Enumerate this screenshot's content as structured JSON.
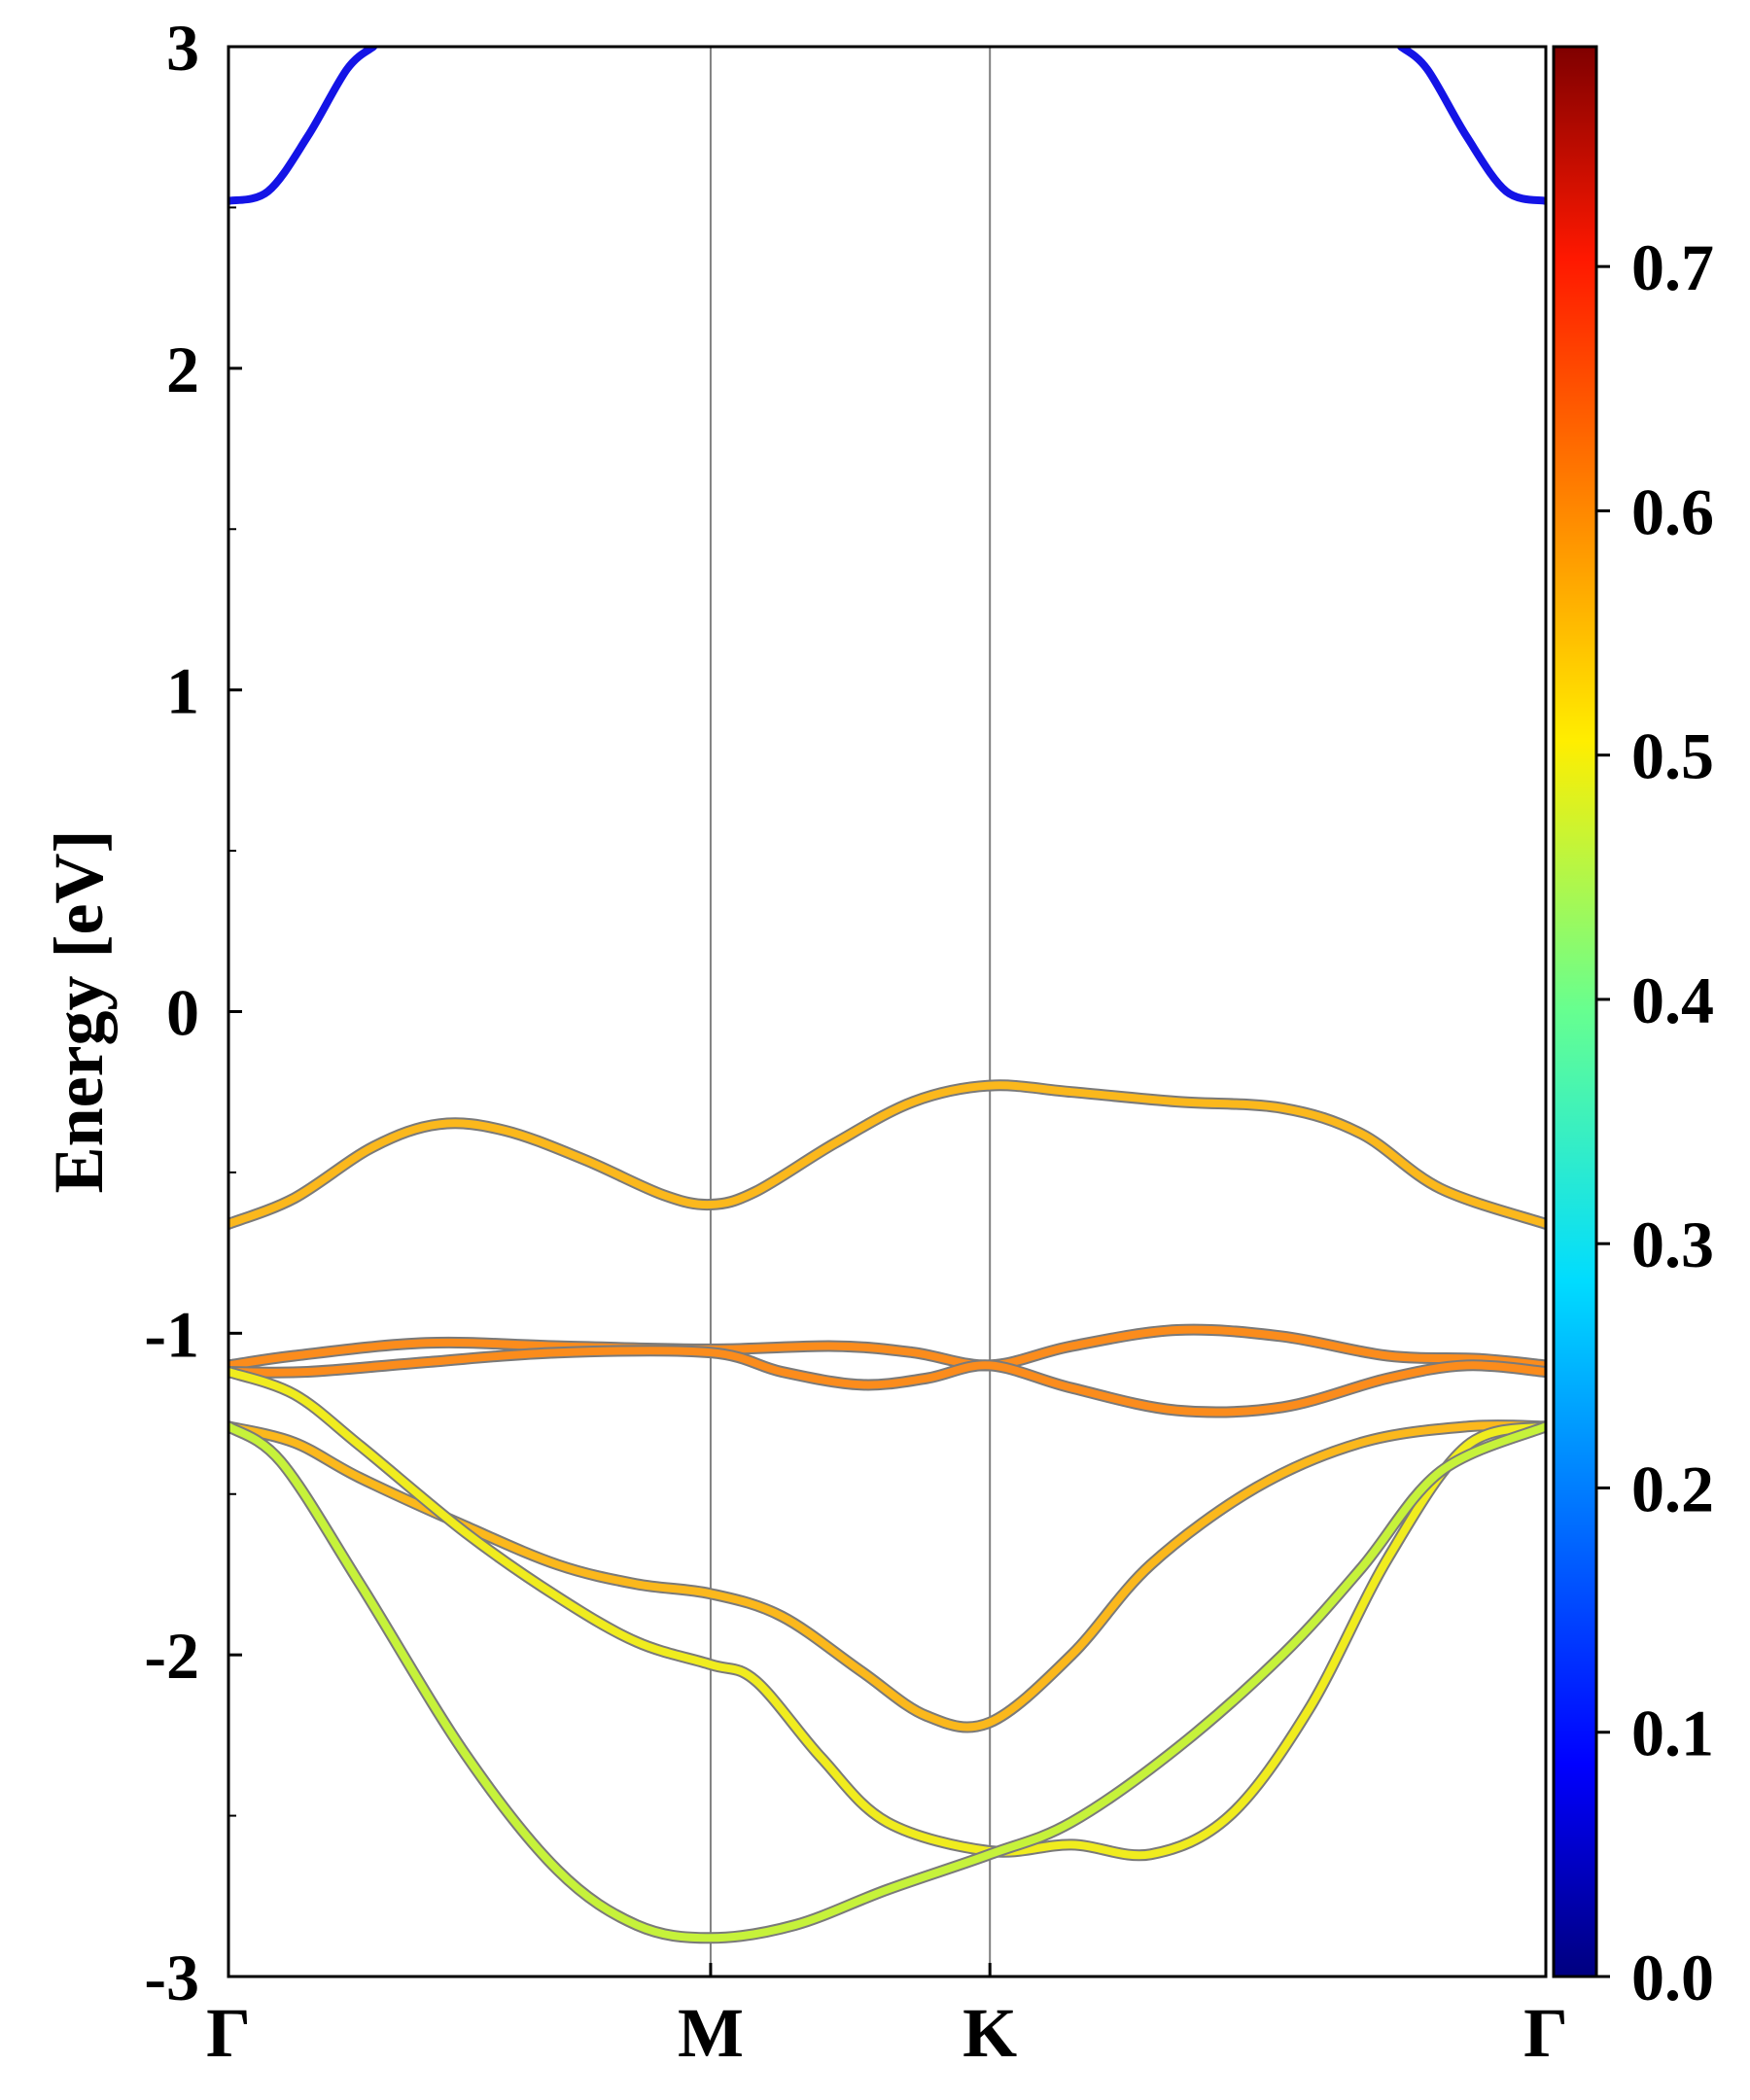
{
  "chart_data": {
    "type": "line",
    "ylabel": "Energy [eV]",
    "xlabel": "",
    "ylim": [
      -3,
      3
    ],
    "xlim": [
      0,
      1
    ],
    "yticks": [
      "-3",
      "-2",
      "-1",
      "0",
      "1",
      "2",
      "3"
    ],
    "kpath": [
      {
        "label": "Γ",
        "x": 0.0
      },
      {
        "label": "M",
        "x": 0.366
      },
      {
        "label": "K",
        "x": 0.578
      },
      {
        "label": "Γ",
        "x": 1.0
      }
    ],
    "grid": false,
    "colorbar": {
      "colormap": "jet",
      "range": [
        0.0,
        0.79
      ],
      "ticks": [
        "0.0",
        "0.1",
        "0.2",
        "0.3",
        "0.4",
        "0.5",
        "0.6",
        "0.7"
      ]
    },
    "series": [
      {
        "color": "#1414e6",
        "points": [
          [
            0.0,
            2.52
          ],
          [
            0.03,
            2.55
          ],
          [
            0.06,
            2.72
          ],
          [
            0.09,
            2.93
          ],
          [
            0.11,
            3.0
          ]
        ]
      },
      {
        "color": "#1414e6",
        "points": [
          [
            0.89,
            3.0
          ],
          [
            0.91,
            2.93
          ],
          [
            0.94,
            2.72
          ],
          [
            0.97,
            2.55
          ],
          [
            1.0,
            2.52
          ]
        ]
      },
      {
        "color": "#fbb81c",
        "points": [
          [
            0.0,
            -0.66
          ],
          [
            0.05,
            -0.58
          ],
          [
            0.11,
            -0.42
          ],
          [
            0.16,
            -0.35
          ],
          [
            0.21,
            -0.37
          ],
          [
            0.27,
            -0.46
          ],
          [
            0.33,
            -0.57
          ],
          [
            0.366,
            -0.6
          ],
          [
            0.4,
            -0.56
          ],
          [
            0.46,
            -0.41
          ],
          [
            0.52,
            -0.28
          ],
          [
            0.578,
            -0.23
          ],
          [
            0.64,
            -0.25
          ],
          [
            0.72,
            -0.28
          ],
          [
            0.8,
            -0.3
          ],
          [
            0.86,
            -0.38
          ],
          [
            0.92,
            -0.55
          ],
          [
            1.0,
            -0.66
          ]
        ]
      },
      {
        "color": "#fb8c1c",
        "points": [
          [
            0.0,
            -1.1
          ],
          [
            0.05,
            -1.07
          ],
          [
            0.15,
            -1.03
          ],
          [
            0.25,
            -1.04
          ],
          [
            0.366,
            -1.05
          ],
          [
            0.46,
            -1.04
          ],
          [
            0.52,
            -1.06
          ],
          [
            0.578,
            -1.1
          ],
          [
            0.64,
            -1.04
          ],
          [
            0.72,
            -0.99
          ],
          [
            0.8,
            -1.01
          ],
          [
            0.88,
            -1.07
          ],
          [
            0.95,
            -1.08
          ],
          [
            1.0,
            -1.1
          ]
        ]
      },
      {
        "color": "#fb8c1c",
        "points": [
          [
            0.0,
            -1.12
          ],
          [
            0.06,
            -1.12
          ],
          [
            0.15,
            -1.09
          ],
          [
            0.25,
            -1.06
          ],
          [
            0.366,
            -1.06
          ],
          [
            0.42,
            -1.12
          ],
          [
            0.48,
            -1.16
          ],
          [
            0.53,
            -1.14
          ],
          [
            0.578,
            -1.1
          ],
          [
            0.64,
            -1.17
          ],
          [
            0.72,
            -1.24
          ],
          [
            0.8,
            -1.23
          ],
          [
            0.88,
            -1.14
          ],
          [
            0.94,
            -1.1
          ],
          [
            1.0,
            -1.12
          ]
        ]
      },
      {
        "color": "#fbb81c",
        "points": [
          [
            0.0,
            -1.29
          ],
          [
            0.05,
            -1.34
          ],
          [
            0.1,
            -1.45
          ],
          [
            0.18,
            -1.6
          ],
          [
            0.25,
            -1.72
          ],
          [
            0.31,
            -1.78
          ],
          [
            0.366,
            -1.81
          ],
          [
            0.42,
            -1.88
          ],
          [
            0.48,
            -2.05
          ],
          [
            0.53,
            -2.19
          ],
          [
            0.578,
            -2.21
          ],
          [
            0.64,
            -2.0
          ],
          [
            0.7,
            -1.72
          ],
          [
            0.78,
            -1.48
          ],
          [
            0.86,
            -1.34
          ],
          [
            0.94,
            -1.29
          ],
          [
            1.0,
            -1.29
          ]
        ]
      },
      {
        "color": "#f0ec1e",
        "points": [
          [
            0.0,
            -1.12
          ],
          [
            0.05,
            -1.19
          ],
          [
            0.1,
            -1.35
          ],
          [
            0.18,
            -1.62
          ],
          [
            0.25,
            -1.82
          ],
          [
            0.31,
            -1.96
          ],
          [
            0.366,
            -2.03
          ],
          [
            0.4,
            -2.08
          ],
          [
            0.45,
            -2.32
          ],
          [
            0.5,
            -2.52
          ],
          [
            0.578,
            -2.61
          ],
          [
            0.64,
            -2.59
          ],
          [
            0.7,
            -2.62
          ],
          [
            0.76,
            -2.5
          ],
          [
            0.82,
            -2.17
          ],
          [
            0.88,
            -1.7
          ],
          [
            0.94,
            -1.35
          ],
          [
            1.0,
            -1.29
          ]
        ]
      },
      {
        "color": "#c6f23a",
        "points": [
          [
            0.0,
            -1.29
          ],
          [
            0.04,
            -1.4
          ],
          [
            0.1,
            -1.78
          ],
          [
            0.18,
            -2.31
          ],
          [
            0.25,
            -2.67
          ],
          [
            0.31,
            -2.84
          ],
          [
            0.366,
            -2.88
          ],
          [
            0.43,
            -2.84
          ],
          [
            0.5,
            -2.73
          ],
          [
            0.578,
            -2.62
          ],
          [
            0.64,
            -2.52
          ],
          [
            0.72,
            -2.29
          ],
          [
            0.8,
            -2.0
          ],
          [
            0.86,
            -1.73
          ],
          [
            0.92,
            -1.43
          ],
          [
            1.0,
            -1.29
          ]
        ]
      }
    ]
  }
}
